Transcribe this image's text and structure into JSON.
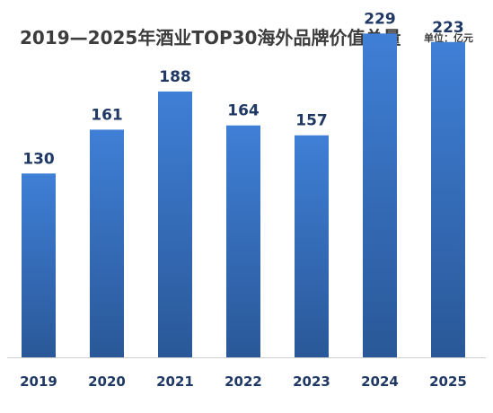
{
  "chart_data": {
    "type": "bar",
    "title": "2019—2025年酒业TOP30海外品牌价值总量",
    "unit_label": "单位：亿元",
    "categories": [
      "2019",
      "2020",
      "2021",
      "2022",
      "2023",
      "2024",
      "2025"
    ],
    "values": [
      130,
      161,
      188,
      164,
      157,
      229,
      223
    ],
    "ylim": [
      0,
      240
    ],
    "xlabel": "",
    "ylabel": "",
    "grid": false,
    "legend": "none",
    "colors": {
      "bar_top": "#3f7fd6",
      "bar_bottom": "#2a5898",
      "value_text": "#1f3864",
      "tick_text": "#1f3864",
      "axis": "#d0d0d0",
      "title_text": "#3c3c3c"
    }
  }
}
